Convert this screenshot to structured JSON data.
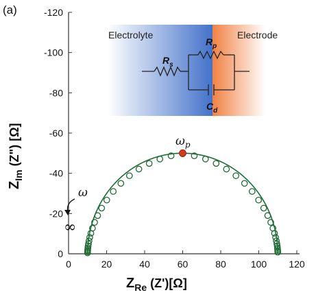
{
  "panel_label": "(a)",
  "inset": {
    "left_label": "Electrolyte",
    "right_label": "Electrode",
    "rs_main": "R",
    "rs_sub": "s",
    "rp_main": "R",
    "rp_sub": "p",
    "cd_main": "C",
    "cd_sub": "d",
    "colors": {
      "electrolyte": "#3a6bc7",
      "electrode": "#f07b3a"
    }
  },
  "annotations": {
    "omega_peak_main": "ω",
    "omega_peak_sub": "p",
    "omega": "ω",
    "infinity": "∞"
  },
  "chart_data": {
    "type": "scatter",
    "xlabel_main": "Z",
    "xlabel_sub": "Re",
    "xlabel_rest": " (Z')[Ω]",
    "ylabel_main": "Z",
    "ylabel_sub": "Im",
    "ylabel_rest": " (Z\") [Ω]",
    "xlim": [
      0,
      120
    ],
    "ylim": [
      0,
      -120
    ],
    "y_inverted": true,
    "xticks": [
      0,
      20,
      40,
      60,
      80,
      100,
      120
    ],
    "yticks": [
      0,
      -20,
      -40,
      -60,
      -80,
      -100,
      -120
    ],
    "grid": false,
    "colors": {
      "series": "#1e6b35",
      "peak": "#d43a1e"
    },
    "fit_curve": {
      "center_x": 60,
      "radius": 50
    },
    "series": [
      {
        "x": [
          10,
          10.02,
          10.05,
          10.1,
          10.18,
          10.3,
          10.48,
          10.75,
          11.15,
          11.72,
          12.55,
          13.7,
          15.3,
          17.4,
          20.1,
          23.5,
          27.5,
          32.0,
          37.0,
          42.4,
          48.0,
          53.9,
          60.0,
          66.1,
          72.0,
          77.6,
          83.0,
          88.0,
          92.5,
          96.5,
          99.9,
          102.6,
          104.7,
          106.3,
          107.45,
          108.28,
          108.85,
          109.25,
          109.52,
          109.7,
          109.82,
          109.9,
          109.95,
          109.98
        ],
        "y": [
          -0.45,
          -1.0,
          -1.6,
          -2.2,
          -3.0,
          -3.9,
          -5.0,
          -6.4,
          -8.1,
          -10.2,
          -12.7,
          -15.6,
          -19.0,
          -22.7,
          -26.7,
          -31.0,
          -35.0,
          -38.8,
          -42.1,
          -44.9,
          -47.1,
          -48.7,
          -49.7,
          -48.7,
          -47.1,
          -44.9,
          -42.1,
          -38.8,
          -35.0,
          -31.0,
          -26.7,
          -22.7,
          -19.0,
          -15.6,
          -12.7,
          -10.2,
          -8.1,
          -6.4,
          -5.0,
          -3.9,
          -3.0,
          -2.2,
          -1.5,
          -0.8
        ]
      }
    ],
    "peak_point": {
      "x": 60,
      "y": -50
    }
  }
}
